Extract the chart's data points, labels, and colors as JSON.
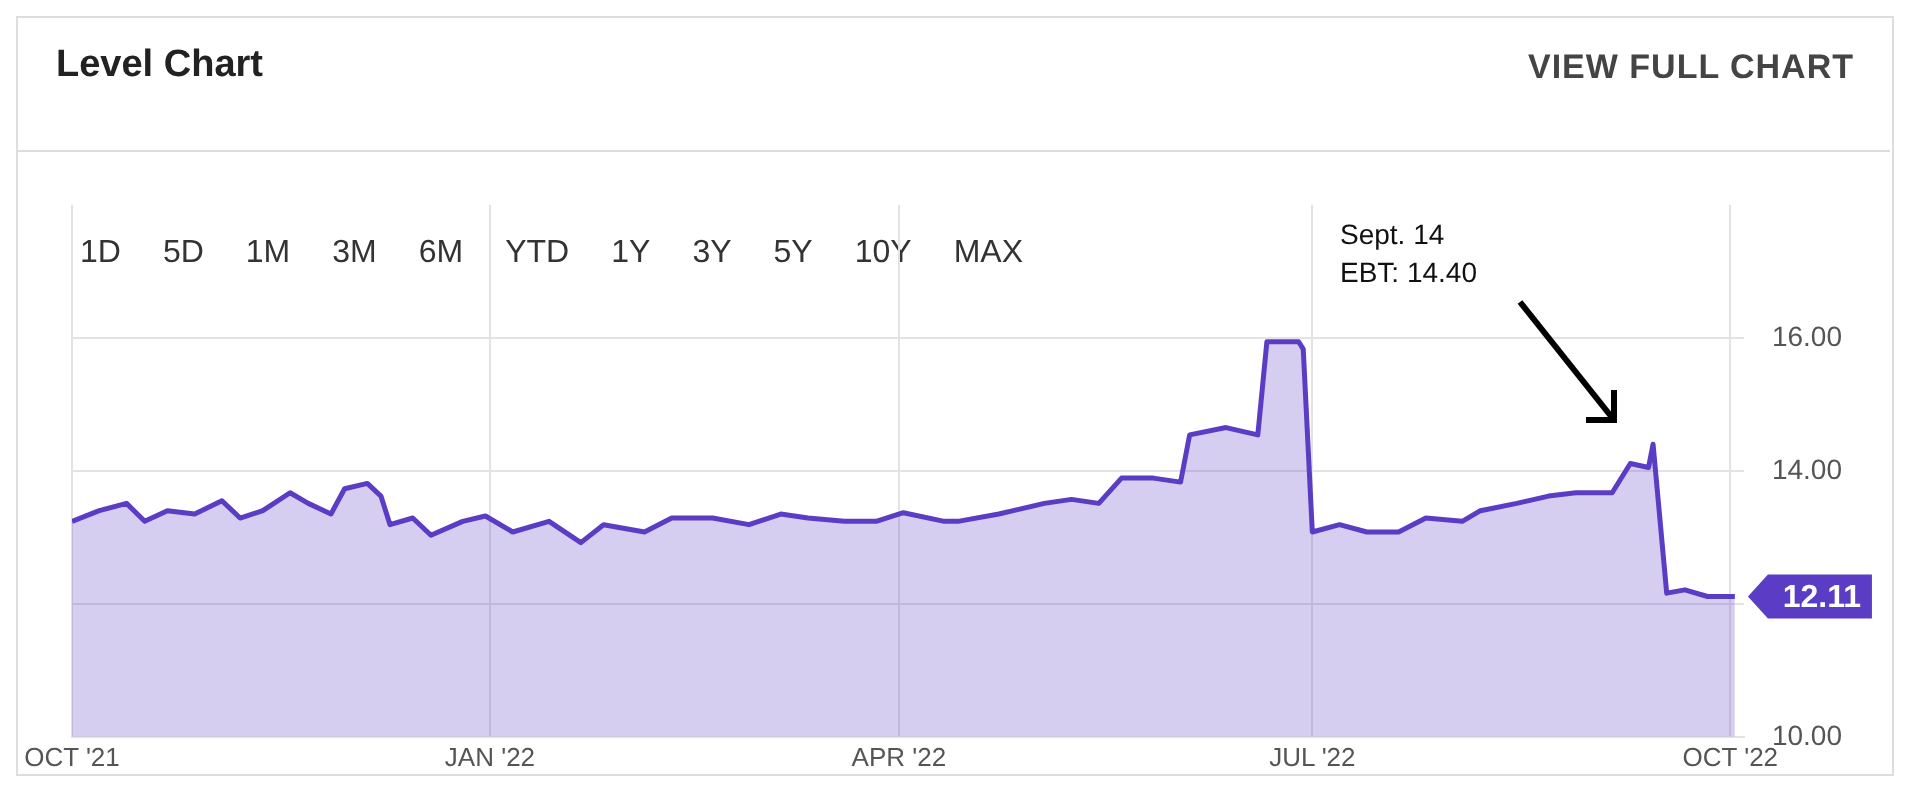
{
  "chart_data": {
    "type": "area",
    "title": "Level Chart",
    "x": [
      "2021-10-01",
      "2021-10-07",
      "2021-10-13",
      "2021-10-17",
      "2021-10-22",
      "2021-10-28",
      "2021-11-03",
      "2021-11-07",
      "2021-11-12",
      "2021-11-18",
      "2021-11-22",
      "2021-11-27",
      "2021-11-30",
      "2021-12-05",
      "2021-12-08",
      "2021-12-10",
      "2021-12-15",
      "2021-12-19",
      "2021-12-26",
      "2021-12-31",
      "2022-01-06",
      "2022-01-14",
      "2022-01-21",
      "2022-01-26",
      "2022-02-04",
      "2022-02-10",
      "2022-02-19",
      "2022-02-27",
      "2022-03-06",
      "2022-03-12",
      "2022-03-20",
      "2022-03-27",
      "2022-04-02",
      "2022-04-11",
      "2022-04-14",
      "2022-04-23",
      "2022-05-03",
      "2022-05-09",
      "2022-05-15",
      "2022-05-20",
      "2022-05-27",
      "2022-06-02",
      "2022-06-04",
      "2022-06-12",
      "2022-06-19",
      "2022-06-21",
      "2022-06-28",
      "2022-06-29",
      "2022-07-01",
      "2022-07-07",
      "2022-07-13",
      "2022-07-20",
      "2022-07-26",
      "2022-08-03",
      "2022-08-07",
      "2022-08-15",
      "2022-08-22",
      "2022-08-28",
      "2022-09-05",
      "2022-09-09",
      "2022-09-13",
      "2022-09-14",
      "2022-09-17",
      "2022-09-21",
      "2022-09-26",
      "2022-10-02"
    ],
    "values": [
      13.24,
      13.4,
      13.51,
      13.24,
      13.4,
      13.35,
      13.55,
      13.29,
      13.4,
      13.67,
      13.51,
      13.35,
      13.73,
      13.81,
      13.62,
      13.19,
      13.29,
      13.03,
      13.24,
      13.32,
      13.08,
      13.24,
      12.92,
      13.19,
      13.08,
      13.29,
      13.29,
      13.19,
      13.35,
      13.29,
      13.24,
      13.24,
      13.37,
      13.24,
      13.24,
      13.35,
      13.51,
      13.57,
      13.51,
      13.89,
      13.89,
      13.83,
      14.54,
      14.65,
      14.54,
      15.94,
      15.94,
      15.83,
      13.08,
      13.19,
      13.08,
      13.08,
      13.29,
      13.24,
      13.4,
      13.51,
      13.62,
      13.67,
      13.67,
      14.11,
      14.05,
      14.4,
      12.16,
      12.21,
      12.11,
      12.11
    ],
    "value_labels": [
      null,
      null,
      null,
      null,
      null,
      null,
      null,
      null,
      null,
      null,
      null,
      null,
      null,
      null,
      null,
      null,
      null,
      null,
      null,
      null,
      null,
      null,
      null,
      null,
      null,
      null,
      null,
      null,
      null,
      null,
      null,
      null,
      null,
      null,
      null,
      null,
      null,
      null,
      null,
      null,
      null,
      null,
      null,
      null,
      null,
      null,
      null,
      null,
      null,
      null,
      null,
      null,
      null,
      null,
      null,
      null,
      null,
      null,
      null,
      null,
      null,
      null,
      null,
      null,
      null,
      "12.11"
    ],
    "color": "#5b3cc4",
    "xlim": [
      "2021-10-01",
      "2022-10-04"
    ],
    "xticks": [
      {
        "value": "2021-10-01",
        "label": "OCT '21"
      },
      {
        "value": "2022-01-01",
        "label": "JAN '22"
      },
      {
        "value": "2022-04-01",
        "label": "APR '22"
      },
      {
        "value": "2022-07-01",
        "label": "JUL '22"
      },
      {
        "value": "2022-10-01",
        "label": "OCT '22"
      }
    ],
    "ylim": [
      10,
      18
    ],
    "yticks": [
      {
        "value": 10,
        "label": "10.00"
      },
      {
        "value": 12,
        "label": null
      },
      {
        "value": 14,
        "label": "14.00"
      },
      {
        "value": 16,
        "label": "16.00"
      }
    ],
    "grid": true,
    "legend": false,
    "annotations": [
      "VIEW FULL CHART",
      "1D",
      "5D",
      "1M",
      "3M",
      "6M",
      "YTD",
      "1Y",
      "3Y",
      "5Y",
      "10Y",
      "MAX",
      "Sept. 14\nEBT: 14.40"
    ]
  }
}
